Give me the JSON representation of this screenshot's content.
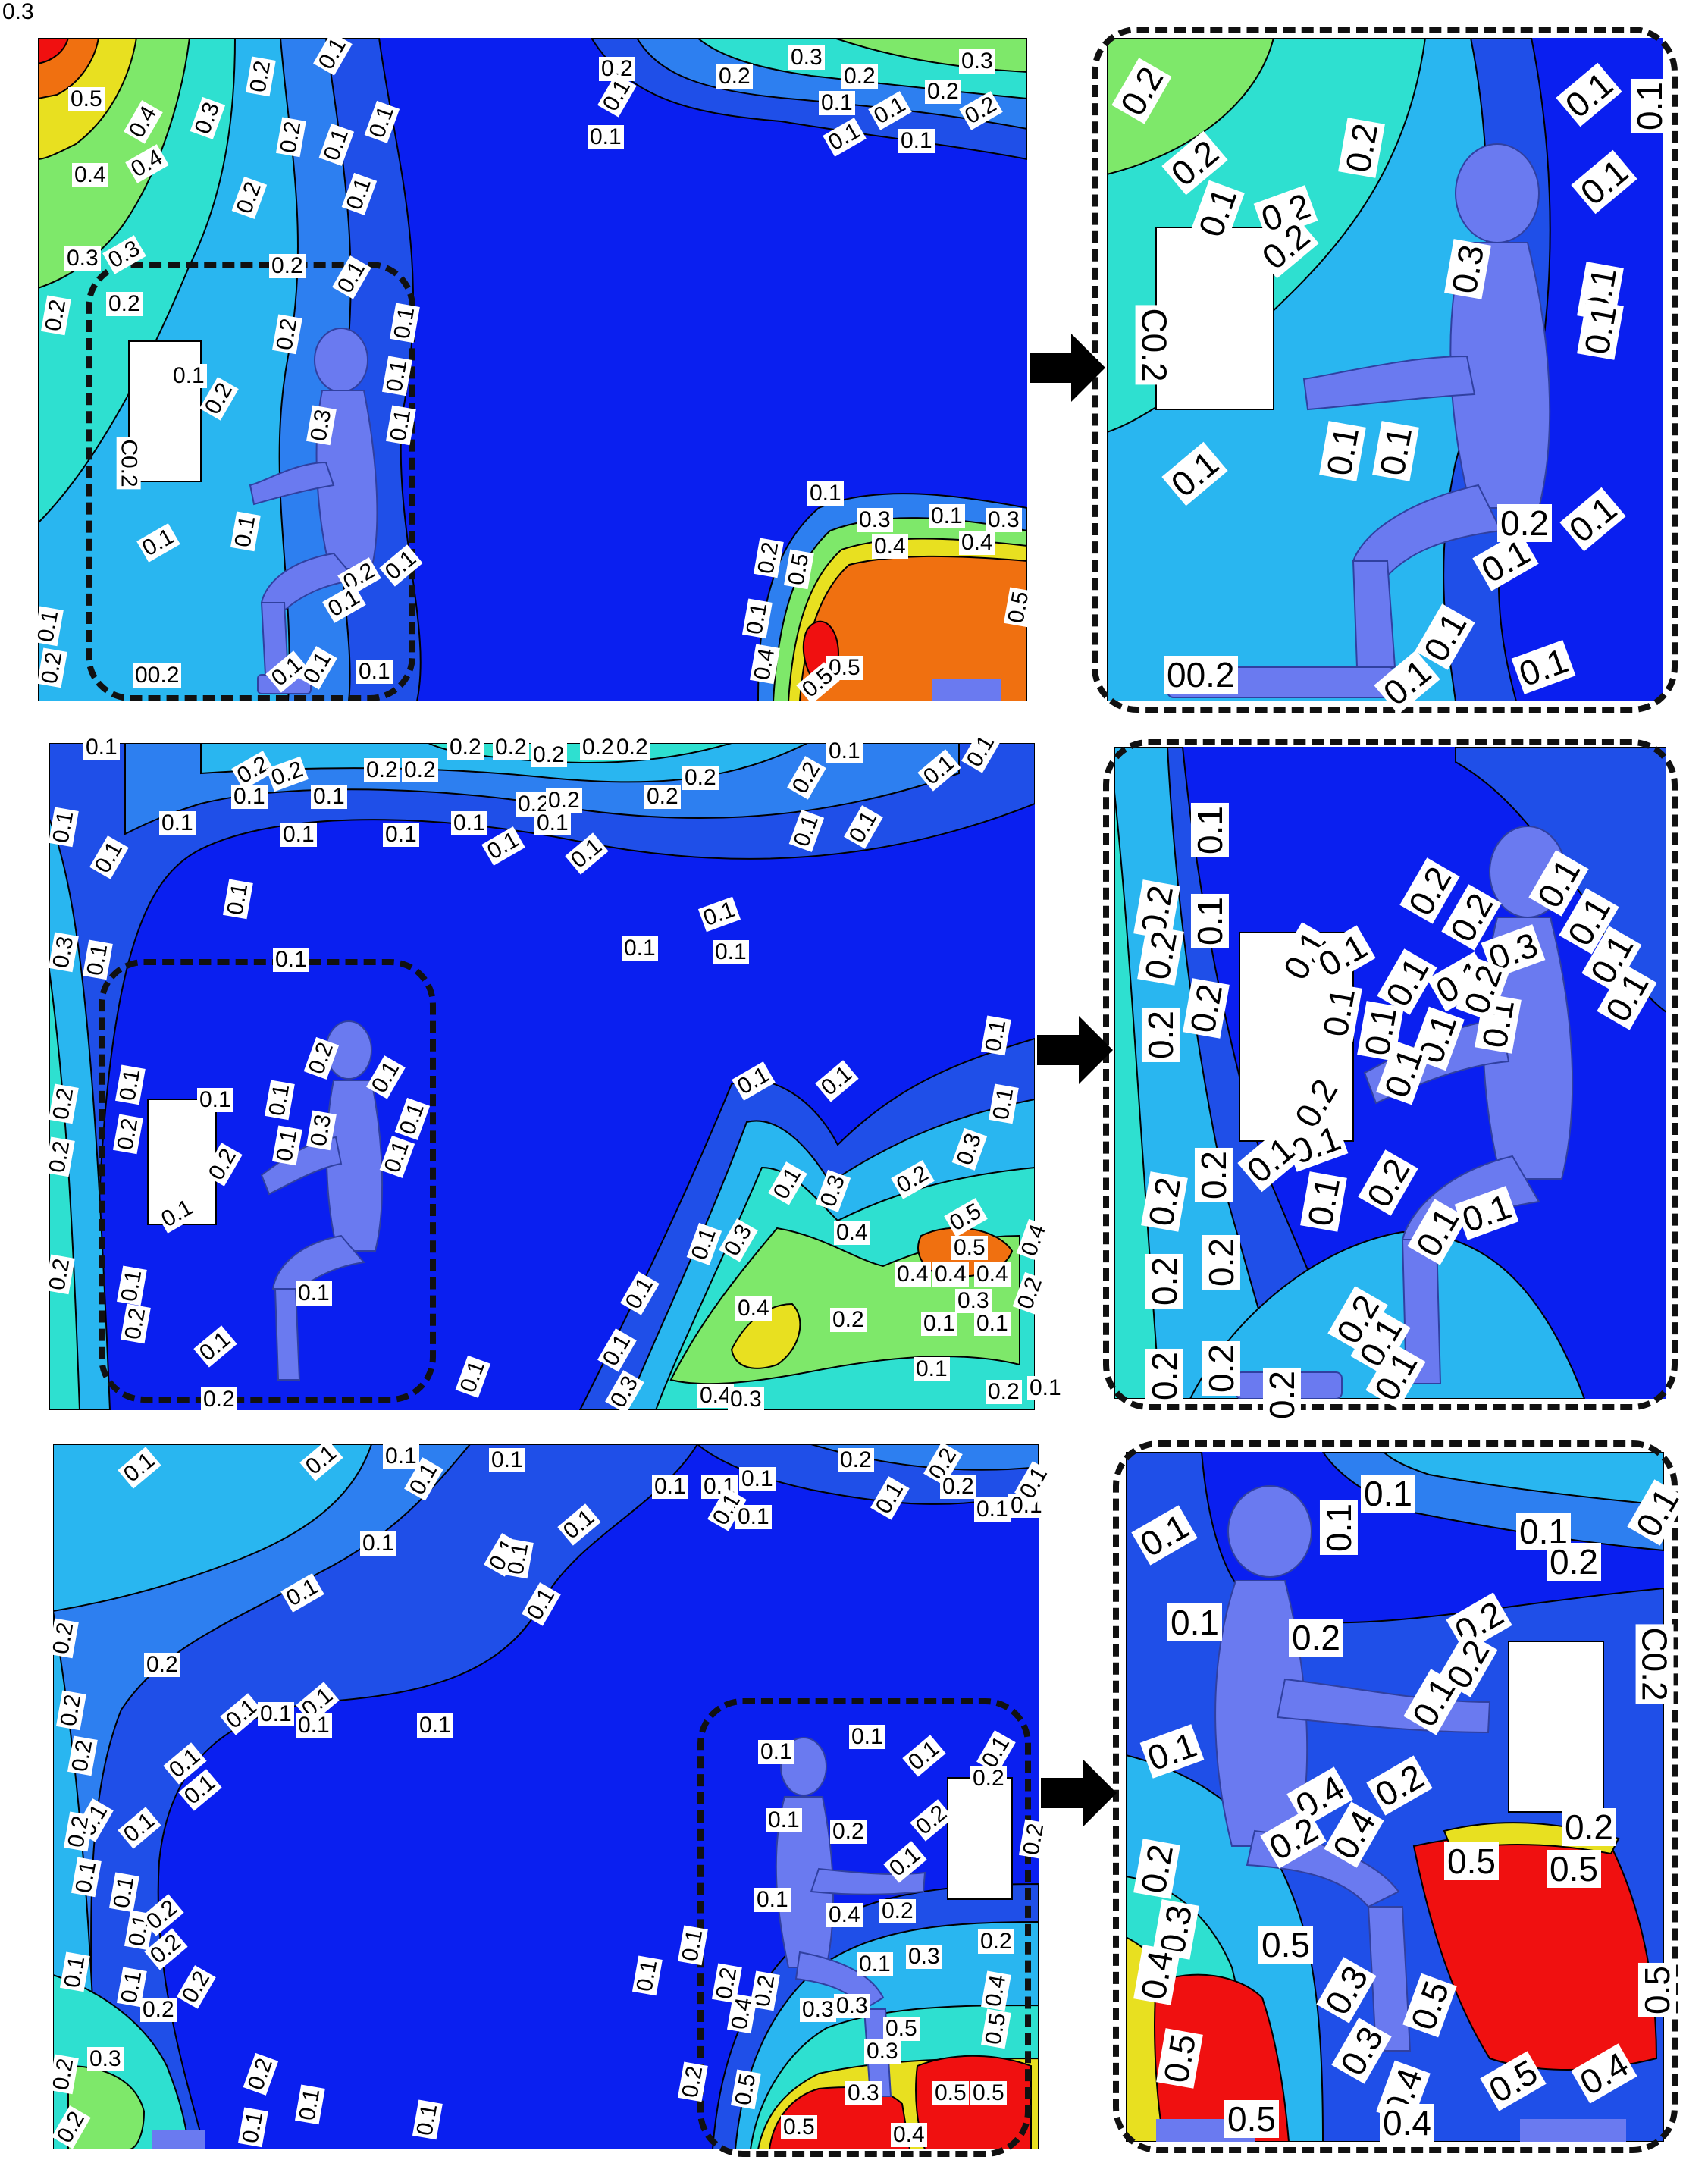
{
  "contour_labels": {
    "v01": "0.1",
    "v02": "0.2",
    "v03": "0.3",
    "v04": "0.4",
    "v05": "0.5",
    "v002": "00.2",
    "v02b": "C0.2"
  },
  "colors": {
    "deep_blue": "#0a1ff0",
    "blue": "#1f4fe8",
    "mid_blue": "#2d7ff0",
    "sky": "#29b6f0",
    "cyan": "#2ee0d0",
    "green": "#7ee86a",
    "yellow": "#e8e020",
    "orange": "#f07010",
    "red": "#f01010",
    "manikin": "#6a7af0",
    "obstacle": "#ffffff"
  },
  "icons": [
    "right-arrow-icon"
  ]
}
